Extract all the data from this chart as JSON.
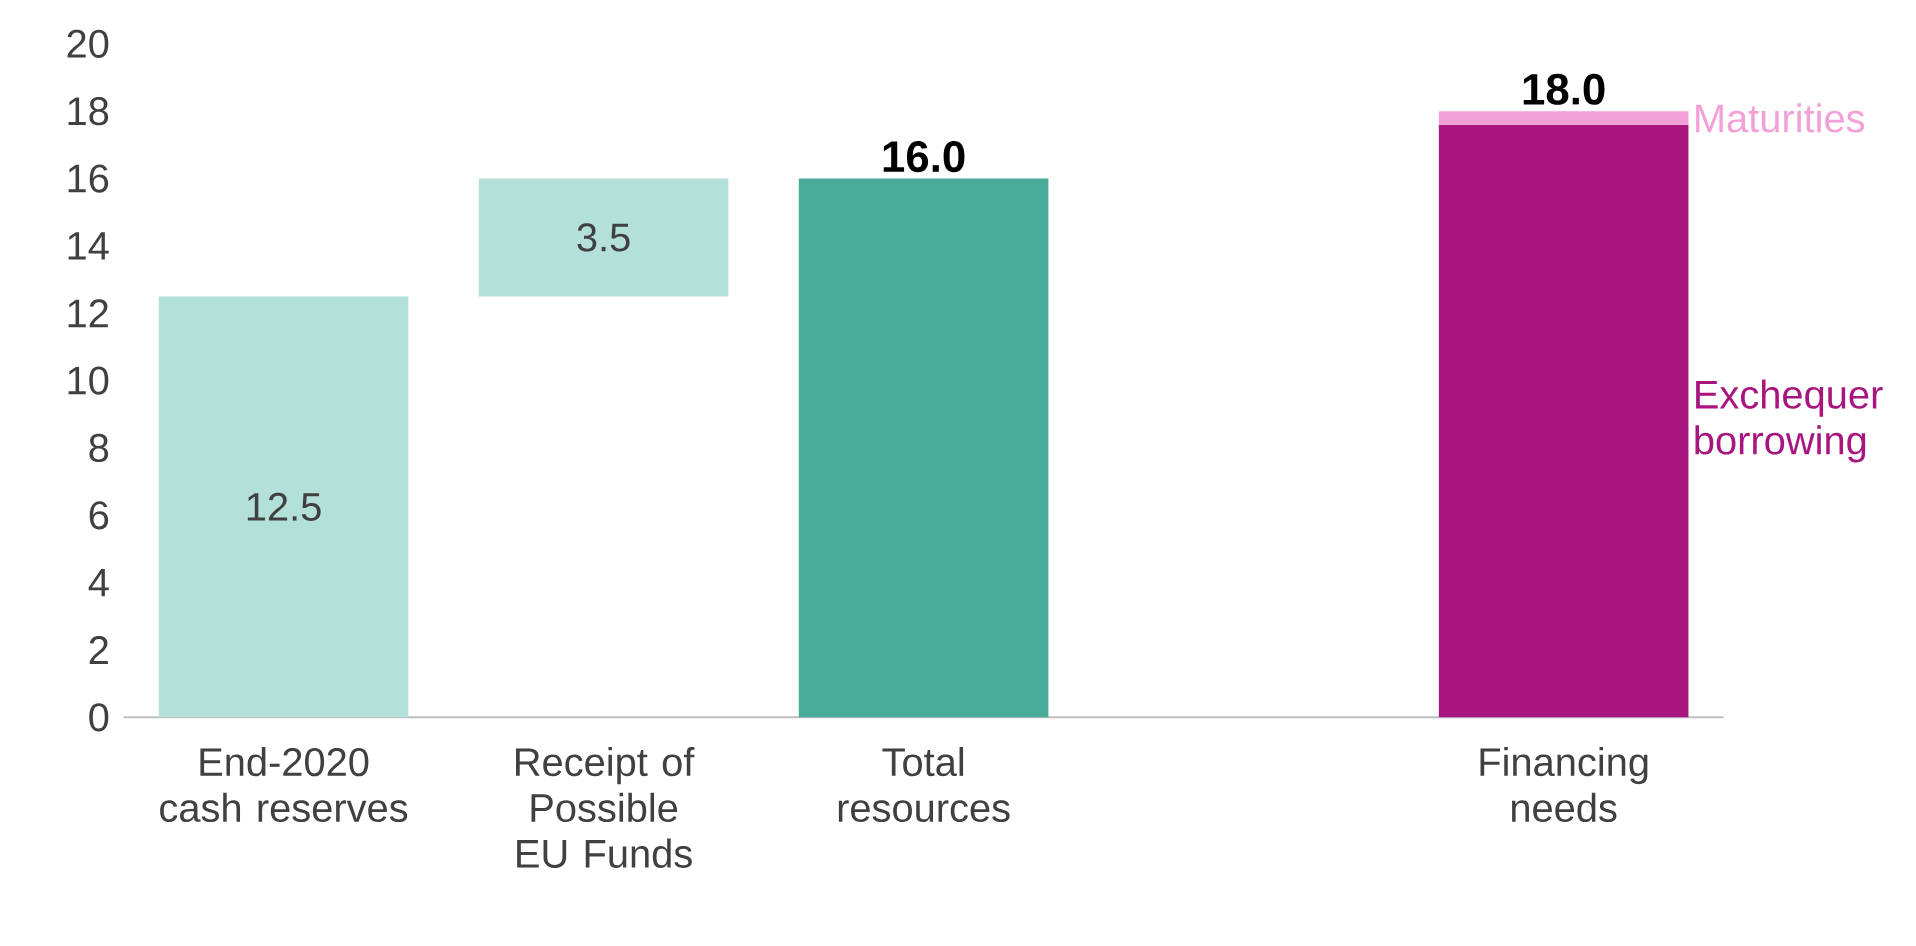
{
  "chart_data": {
    "type": "bar",
    "categories": [
      "End-2020 cash reserves",
      "Receipt of Possible EU Funds",
      "Total resources",
      null,
      "Financing needs"
    ],
    "series": [
      {
        "color": "#b3e0d8",
        "values": [
          12.5,
          3.5,
          null,
          null,
          null
        ],
        "base": [
          0,
          12.5,
          null,
          null,
          null
        ],
        "value_labels": [
          "12.5",
          "3.5",
          null,
          null,
          null
        ]
      },
      {
        "color": "#4aab98",
        "values": [
          null,
          null,
          16.0,
          null,
          null
        ]
      },
      {
        "name": "Exchequer borrowing",
        "color": "#a8157f",
        "values": [
          null,
          null,
          null,
          null,
          17.6
        ]
      },
      {
        "name": "Maturities",
        "color": "#f2a0d8",
        "values": [
          null,
          null,
          null,
          null,
          0.4
        ],
        "base": [
          null,
          null,
          null,
          null,
          17.6
        ]
      }
    ],
    "totals": [
      null,
      null,
      "16.0",
      null,
      "18.0"
    ],
    "ylim": [
      0,
      20
    ],
    "yticks": [
      0,
      2,
      4,
      6,
      8,
      10,
      12,
      14,
      16,
      18,
      20
    ]
  }
}
